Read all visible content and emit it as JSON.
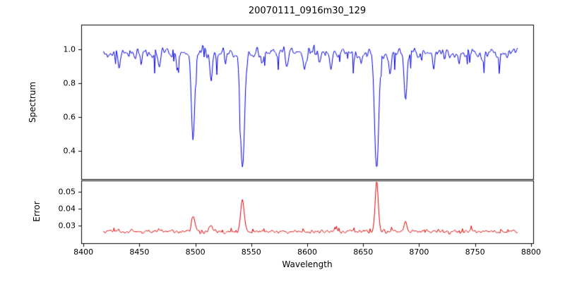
{
  "title": "20070111_0916m30_129",
  "axes": {
    "x": {
      "label": "Wavelength",
      "lim": [
        8398,
        8802
      ],
      "ticks": [
        8400,
        8450,
        8500,
        8550,
        8600,
        8650,
        8700,
        8750,
        8800
      ]
    },
    "spectrum_y": {
      "label": "Spectrum",
      "lim": [
        0.233,
        1.146
      ],
      "ticks": [
        0.4,
        0.6,
        0.8,
        1.0
      ],
      "tick_decimals": 1
    },
    "error_y": {
      "label": "Error",
      "lim": [
        0.0196,
        0.0567
      ],
      "ticks": [
        0.03,
        0.04,
        0.05
      ],
      "tick_decimals": 2
    }
  },
  "seed": 42,
  "samples": 520,
  "chart_data": [
    {
      "type": "line",
      "name": "spectrum",
      "panel": "top",
      "color": "#0000dd",
      "x_range": [
        8418,
        8788
      ],
      "continuum": 0.98,
      "noise_sigma": 0.025,
      "features": [
        {
          "center": 8432,
          "depth": 0.1,
          "width": 1.0
        },
        {
          "center": 8452,
          "depth": 0.07,
          "width": 0.9
        },
        {
          "center": 8468,
          "depth": 0.11,
          "width": 1.0
        },
        {
          "center": 8484,
          "depth": 0.08,
          "width": 0.9
        },
        {
          "center": 8498.0,
          "depth": 0.5,
          "width": 1.5
        },
        {
          "center": 8514,
          "depth": 0.16,
          "width": 1.1
        },
        {
          "center": 8527,
          "depth": 0.08,
          "width": 0.9
        },
        {
          "center": 8542.1,
          "depth": 0.7,
          "width": 1.9
        },
        {
          "center": 8560,
          "depth": 0.07,
          "width": 0.9
        },
        {
          "center": 8582,
          "depth": 0.09,
          "width": 0.9
        },
        {
          "center": 8598,
          "depth": 0.1,
          "width": 1.0
        },
        {
          "center": 8611,
          "depth": 0.07,
          "width": 0.9
        },
        {
          "center": 8621,
          "depth": 0.09,
          "width": 0.9
        },
        {
          "center": 8648,
          "depth": 0.07,
          "width": 0.9
        },
        {
          "center": 8662.1,
          "depth": 0.7,
          "width": 1.8
        },
        {
          "center": 8674,
          "depth": 0.12,
          "width": 1.0
        },
        {
          "center": 8688,
          "depth": 0.28,
          "width": 1.2
        },
        {
          "center": 8713,
          "depth": 0.09,
          "width": 0.9
        },
        {
          "center": 8736,
          "depth": 0.08,
          "width": 0.9
        },
        {
          "center": 8757,
          "depth": 0.07,
          "width": 0.9
        }
      ],
      "key_points": [
        [
          8498,
          0.47
        ],
        [
          8514,
          0.8
        ],
        [
          8542,
          0.27
        ],
        [
          8662,
          0.27
        ],
        [
          8688,
          0.7
        ]
      ]
    },
    {
      "type": "line",
      "name": "error",
      "panel": "bottom",
      "color": "#dd0000",
      "x_range": [
        8418,
        8788
      ],
      "baseline": 0.0265,
      "noise_sigma": 0.0009,
      "spikes": [
        {
          "center": 8498,
          "height": 0.0095,
          "width": 1.5
        },
        {
          "center": 8514,
          "height": 0.003,
          "width": 1.2
        },
        {
          "center": 8542.1,
          "height": 0.018,
          "width": 1.6
        },
        {
          "center": 8662.1,
          "height": 0.029,
          "width": 1.4
        },
        {
          "center": 8688,
          "height": 0.0055,
          "width": 1.2
        }
      ],
      "key_points": [
        [
          8498,
          0.037
        ],
        [
          8542,
          0.045
        ],
        [
          8662,
          0.056
        ],
        [
          8688,
          0.033
        ]
      ]
    }
  ]
}
